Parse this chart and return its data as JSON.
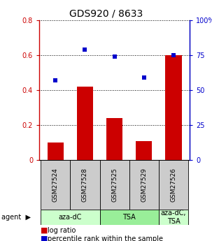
{
  "title": "GDS920 / 8633",
  "categories": [
    "GSM27524",
    "GSM27528",
    "GSM27525",
    "GSM27529",
    "GSM27526"
  ],
  "log_ratio": [
    0.1,
    0.42,
    0.24,
    0.11,
    0.6
  ],
  "percentile": [
    57,
    79,
    74,
    59,
    75
  ],
  "bar_color": "#cc0000",
  "square_color": "#0000cc",
  "ylim_left": [
    0,
    0.8
  ],
  "ylim_right": [
    0,
    100
  ],
  "yticks_left": [
    0,
    0.2,
    0.4,
    0.6,
    0.8
  ],
  "yticks_right": [
    0,
    25,
    50,
    75,
    100
  ],
  "ytick_labels_left": [
    "0",
    "0.2",
    "0.4",
    "0.6",
    "0.8"
  ],
  "ytick_labels_right": [
    "0",
    "25",
    "50",
    "75",
    "100%"
  ],
  "agent_groups": [
    {
      "label": "aza-dC",
      "indices": [
        0,
        1
      ],
      "color": "#ccffcc"
    },
    {
      "label": "TSA",
      "indices": [
        2,
        3
      ],
      "color": "#99ee99"
    },
    {
      "label": "aza-dC,\nTSA",
      "indices": [
        4
      ],
      "color": "#ccffcc"
    }
  ],
  "legend_items": [
    {
      "label": " log ratio",
      "color": "#cc0000"
    },
    {
      "label": " percentile rank within the sample",
      "color": "#0000cc"
    }
  ],
  "bar_width": 0.55,
  "title_fontsize": 10,
  "tick_fontsize": 7,
  "sample_fontsize": 6.5,
  "agent_fontsize": 7,
  "legend_fontsize": 7
}
